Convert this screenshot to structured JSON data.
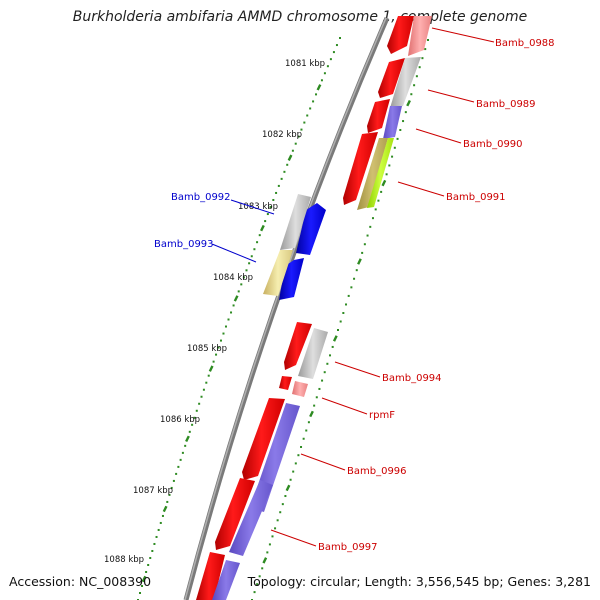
{
  "title": "Burkholderia ambifaria AMMD chromosome 1, complete genome",
  "footer": {
    "accession": "Accession: NC_008390",
    "summary": "Topology: circular; Length: 3,556,545 bp; Genes: 3,281"
  },
  "ruler": {
    "ticks": [
      "1081 kbp",
      "1082 kbp",
      "1083 kbp",
      "1084 kbp",
      "1085 kbp",
      "1086 kbp",
      "1087 kbp",
      "1088 kbp"
    ]
  },
  "genes": [
    {
      "name": "Bamb_0988",
      "strand": "forward"
    },
    {
      "name": "Bamb_0989",
      "strand": "forward"
    },
    {
      "name": "Bamb_0990",
      "strand": "forward"
    },
    {
      "name": "Bamb_0991",
      "strand": "forward"
    },
    {
      "name": "Bamb_0992",
      "strand": "reverse"
    },
    {
      "name": "Bamb_0993",
      "strand": "reverse"
    },
    {
      "name": "Bamb_0994",
      "strand": "forward"
    },
    {
      "name": "rpmF",
      "strand": "forward"
    },
    {
      "name": "Bamb_0996",
      "strand": "forward"
    },
    {
      "name": "Bamb_0997",
      "strand": "forward"
    }
  ],
  "colors": {
    "forward_label": "#cc0000",
    "reverse_label": "#0000cc",
    "cds_forward": "#ff0000",
    "cds_reverse": "#0000ff",
    "ruler_dots": "#2e8b22",
    "backbone": "#888888"
  }
}
